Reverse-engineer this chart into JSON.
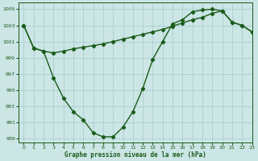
{
  "line1_x": [
    0,
    1,
    2,
    3,
    4,
    5,
    6,
    7,
    8,
    9,
    10,
    11,
    12,
    13,
    14,
    15,
    16,
    17,
    18,
    19,
    20,
    21,
    22,
    23
  ],
  "line1_y": [
    1003,
    1000.2,
    999.8,
    996.5,
    994.0,
    992.3,
    991.3,
    989.7,
    989.2,
    989.2,
    990.4,
    992.3,
    995.2,
    998.8,
    1001.0,
    1003.2,
    1003.7,
    1004.7,
    1004.9,
    1005.0,
    1004.8,
    1003.4,
    1003.0,
    1002.2
  ],
  "line2_x": [
    0,
    1,
    2,
    3,
    4,
    5,
    6,
    7,
    8,
    9,
    10,
    11,
    12,
    13,
    14,
    15,
    16,
    17,
    18,
    19,
    20,
    21,
    22,
    23
  ],
  "line2_y": [
    1003,
    1000.2,
    999.8,
    999.6,
    999.8,
    1000.1,
    1000.3,
    1000.5,
    1000.7,
    1001.0,
    1001.3,
    1001.6,
    1001.9,
    1002.2,
    1002.5,
    1002.9,
    1003.3,
    1003.7,
    1004.0,
    1004.5,
    1004.8,
    1003.4,
    1003.0,
    1002.2
  ],
  "bg_color": "#cce5e5",
  "line_color": "#1a5c1a",
  "grid_color": "#aacfcf",
  "ylim": [
    988.5,
    1005.8
  ],
  "xlim": [
    -0.5,
    23
  ],
  "yticks": [
    989,
    991,
    993,
    995,
    997,
    999,
    1001,
    1003,
    1005
  ],
  "xticks": [
    0,
    1,
    2,
    3,
    4,
    5,
    6,
    7,
    8,
    9,
    10,
    11,
    12,
    13,
    14,
    15,
    16,
    17,
    18,
    19,
    20,
    21,
    22,
    23
  ],
  "xlabel": "Graphe pression niveau de la mer (hPa)",
  "marker": "D",
  "markersize": 2.2,
  "linewidth": 1.0
}
